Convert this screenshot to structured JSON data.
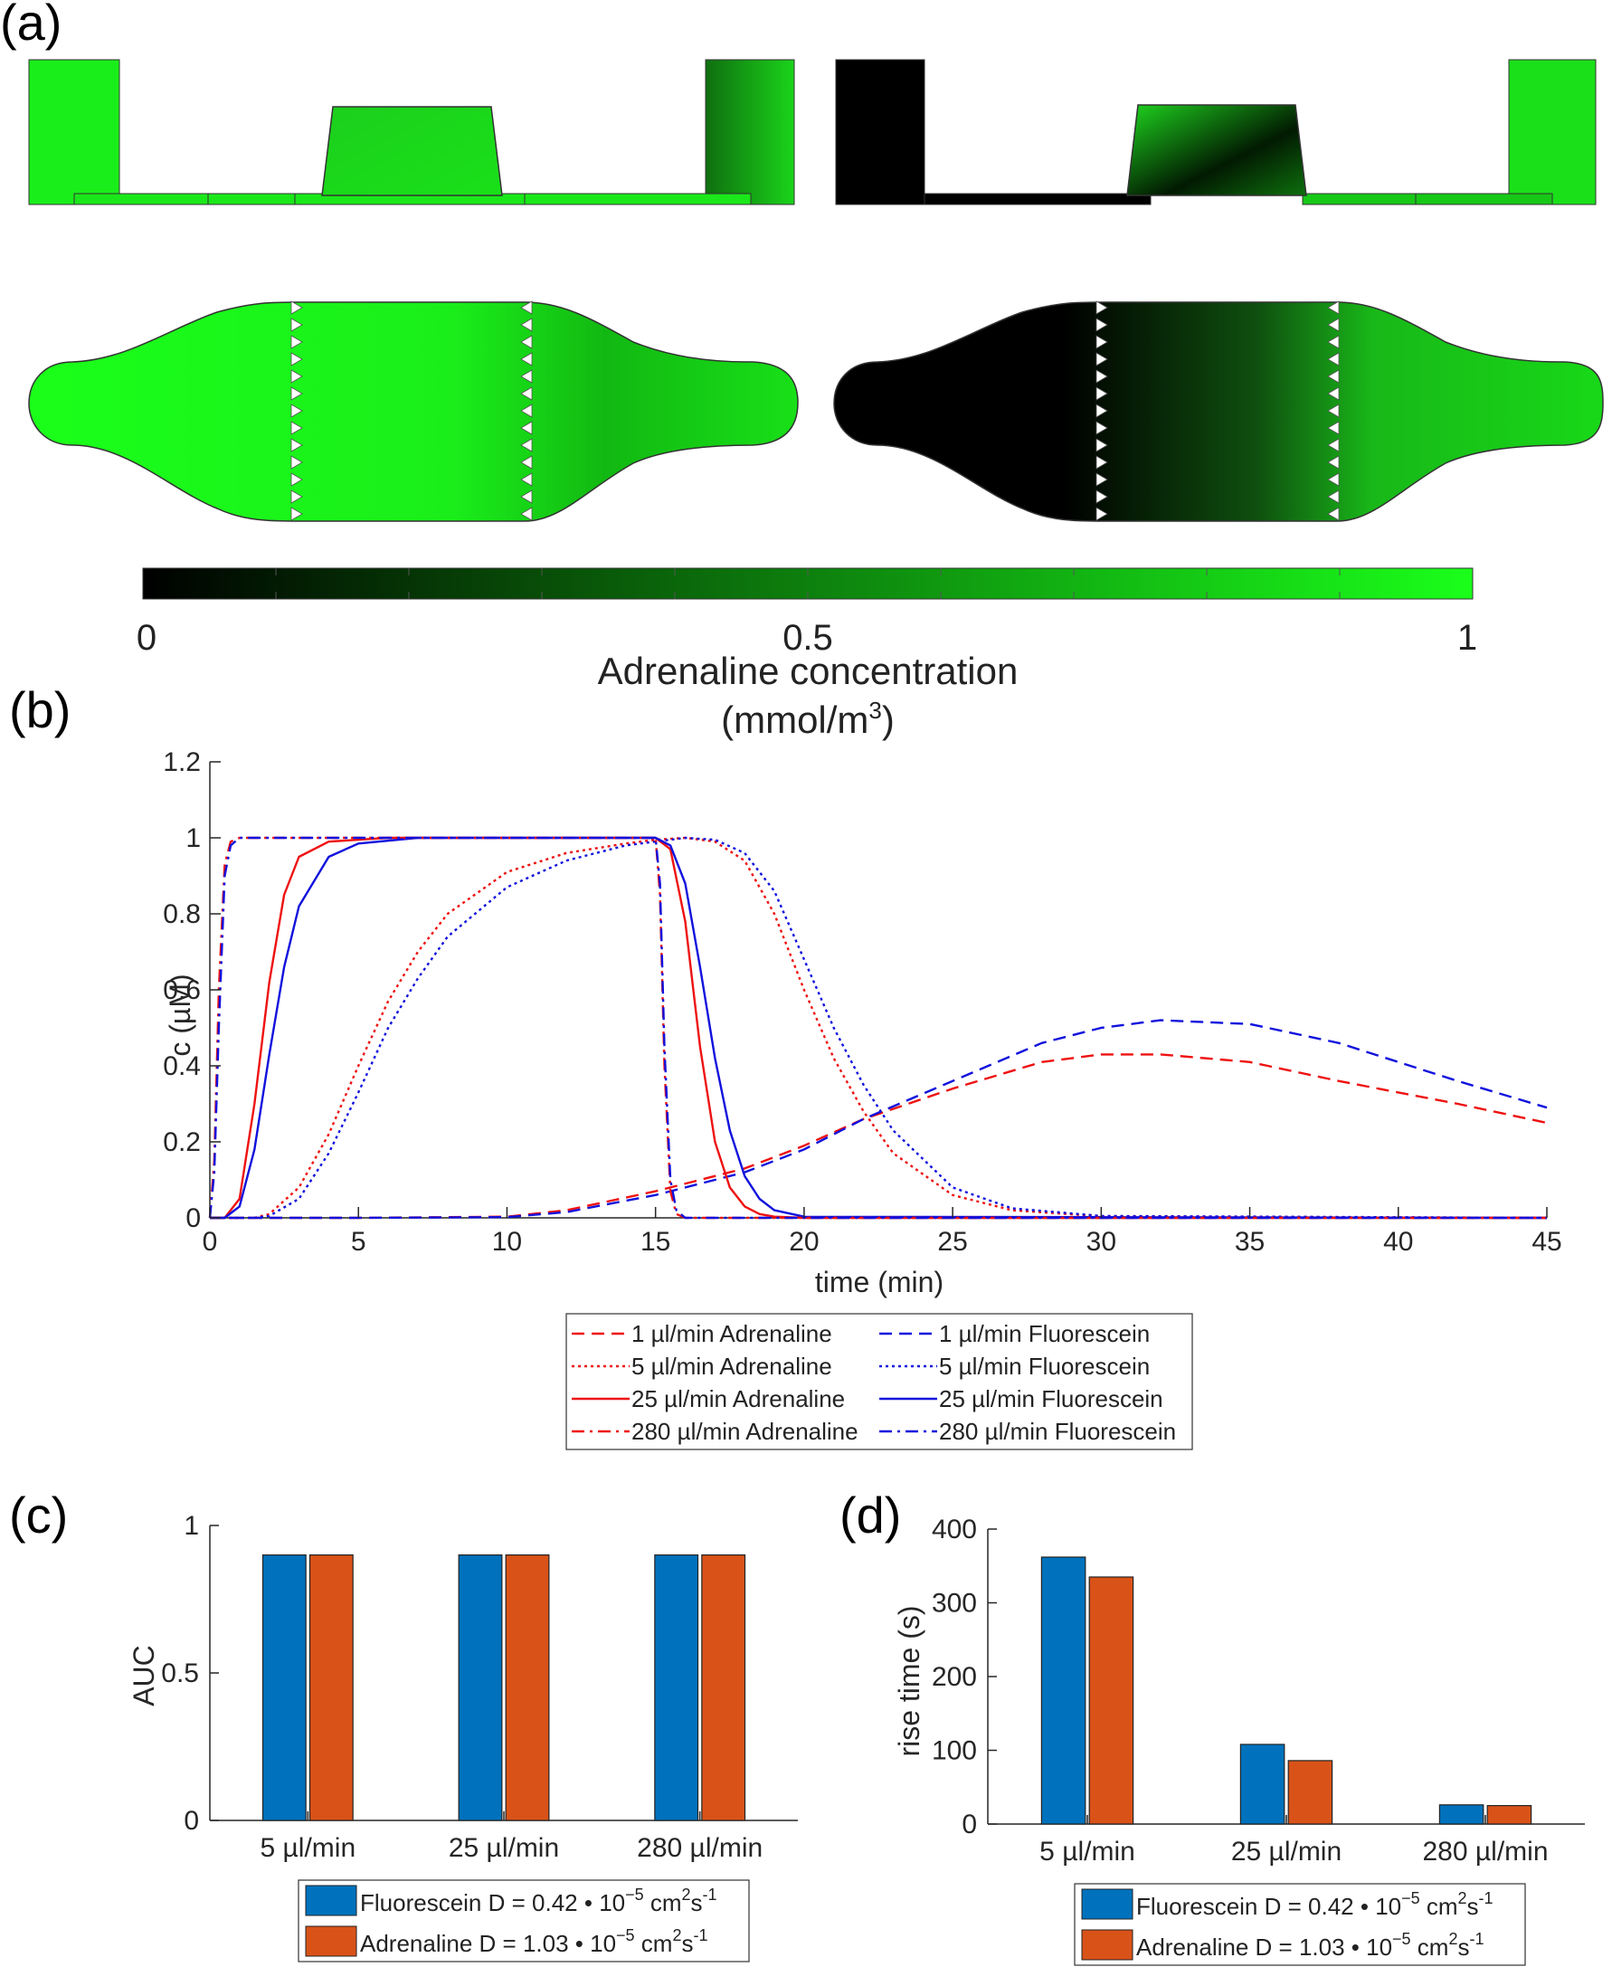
{
  "panel_labels": {
    "a": "(a)",
    "b": "(b)",
    "c": "(c)",
    "d": "(d)"
  },
  "colorbar": {
    "ticks": [
      "0",
      "0.5",
      "1"
    ],
    "title_line1": "Adrenaline concentration",
    "title_line2_main": "(mmol/m",
    "title_line2_sup": "3",
    "title_line2_end": ")",
    "color_low": "#000000",
    "color_high": "#1aff1a"
  },
  "colors": {
    "adrenaline_line": "#ee1111",
    "fluorescein_line": "#1111dd",
    "fluorescein_bar": "#0072bd",
    "adrenaline_bar": "#d95319"
  },
  "chart_data": [
    {
      "type": "line",
      "panel": "b",
      "xlabel": "time (min)",
      "ylabel": "c (µM)",
      "xlim": [
        0,
        45
      ],
      "ylim": [
        0,
        1.2
      ],
      "xticks": [
        "0",
        "5",
        "10",
        "15",
        "20",
        "25",
        "30",
        "35",
        "40",
        "45"
      ],
      "yticks": [
        "0",
        "0.2",
        "0.4",
        "0.6",
        "0.8",
        "1",
        "1.2"
      ],
      "grid": false,
      "legend_position": "below plot, two columns",
      "series": [
        {
          "name": "1 µl/min Adrenaline",
          "color": "adrenaline",
          "style": "dashed",
          "x": [
            0,
            5,
            10,
            12,
            15,
            18,
            20,
            22,
            25,
            28,
            30,
            32,
            35,
            38,
            40,
            42,
            45
          ],
          "y": [
            0,
            0,
            0.003,
            0.02,
            0.07,
            0.13,
            0.19,
            0.26,
            0.34,
            0.41,
            0.43,
            0.43,
            0.41,
            0.36,
            0.33,
            0.3,
            0.25
          ]
        },
        {
          "name": "1 µl/min Fluorescein",
          "color": "fluorescein",
          "style": "dashed",
          "x": [
            0,
            5,
            10,
            12,
            15,
            18,
            20,
            22,
            25,
            28,
            30,
            32,
            35,
            38,
            40,
            42,
            45
          ],
          "y": [
            0,
            0,
            0.002,
            0.015,
            0.06,
            0.12,
            0.18,
            0.26,
            0.36,
            0.46,
            0.5,
            0.52,
            0.51,
            0.46,
            0.41,
            0.36,
            0.29
          ]
        },
        {
          "name": "5 µl/min Adrenaline",
          "color": "adrenaline",
          "style": "dotted",
          "x": [
            0,
            1.5,
            2,
            3,
            4,
            5,
            6,
            7,
            8,
            10,
            12,
            14,
            15,
            16,
            17,
            18,
            19,
            20,
            21,
            22,
            23,
            25,
            27,
            30,
            45
          ],
          "y": [
            0,
            0,
            0.01,
            0.08,
            0.22,
            0.4,
            0.57,
            0.7,
            0.8,
            0.91,
            0.96,
            0.985,
            0.995,
            1.0,
            0.99,
            0.94,
            0.8,
            0.6,
            0.42,
            0.28,
            0.17,
            0.06,
            0.02,
            0.004,
            0
          ]
        },
        {
          "name": "5 µl/min Fluorescein",
          "color": "fluorescein",
          "style": "dotted",
          "x": [
            0,
            1.5,
            2,
            3,
            4,
            5,
            6,
            7,
            8,
            10,
            12,
            14,
            15,
            16,
            17,
            18,
            19,
            20,
            21,
            22,
            23,
            25,
            27,
            30,
            45
          ],
          "y": [
            0,
            0,
            0.005,
            0.05,
            0.17,
            0.33,
            0.5,
            0.63,
            0.74,
            0.87,
            0.94,
            0.98,
            0.99,
            1.0,
            0.995,
            0.96,
            0.86,
            0.68,
            0.5,
            0.35,
            0.23,
            0.08,
            0.025,
            0.005,
            0
          ]
        },
        {
          "name": "25 µl/min Adrenaline",
          "color": "adrenaline",
          "style": "solid",
          "x": [
            0,
            0.5,
            1,
            1.5,
            2,
            2.5,
            3,
            4,
            6,
            15,
            15.5,
            16,
            16.5,
            17,
            17.5,
            18,
            18.5,
            19,
            20,
            45
          ],
          "y": [
            0,
            0,
            0.05,
            0.3,
            0.62,
            0.85,
            0.95,
            0.99,
            1.0,
            1.0,
            0.97,
            0.78,
            0.45,
            0.2,
            0.08,
            0.03,
            0.01,
            0.003,
            0,
            0
          ]
        },
        {
          "name": "25 µl/min Fluorescein",
          "color": "fluorescein",
          "style": "solid",
          "x": [
            0,
            0.5,
            1,
            1.5,
            2,
            2.5,
            3,
            4,
            5,
            7,
            15,
            15.5,
            16,
            16.5,
            17,
            17.5,
            18,
            18.5,
            19,
            20,
            45
          ],
          "y": [
            0,
            0,
            0.03,
            0.18,
            0.43,
            0.66,
            0.82,
            0.95,
            0.985,
            1.0,
            1.0,
            0.98,
            0.88,
            0.66,
            0.42,
            0.23,
            0.11,
            0.05,
            0.02,
            0.003,
            0
          ]
        },
        {
          "name": "280 µl/min Adrenaline",
          "color": "adrenaline",
          "style": "dashdot",
          "x": [
            0,
            0.15,
            0.3,
            0.5,
            0.7,
            1.0,
            15,
            15.15,
            15.3,
            15.5,
            15.7,
            16,
            45
          ],
          "y": [
            0,
            0.15,
            0.6,
            0.93,
            0.99,
            1.0,
            1.0,
            0.85,
            0.4,
            0.07,
            0.01,
            0,
            0
          ]
        },
        {
          "name": "280 µl/min Fluorescein",
          "color": "fluorescein",
          "style": "dashdot",
          "x": [
            0,
            0.15,
            0.3,
            0.5,
            0.7,
            1.0,
            15,
            15.15,
            15.3,
            15.5,
            15.7,
            16,
            45
          ],
          "y": [
            0,
            0.12,
            0.5,
            0.9,
            0.98,
            1.0,
            1.0,
            0.88,
            0.45,
            0.1,
            0.02,
            0,
            0
          ]
        }
      ]
    },
    {
      "type": "bar",
      "panel": "c",
      "ylabel": "AUC",
      "ylim": [
        0,
        1
      ],
      "yticks": [
        "0",
        "0.5",
        "1"
      ],
      "categories": [
        "5 µl/min",
        "25 µl/min",
        "280 µl/min"
      ],
      "series": [
        {
          "name_main": "Fluorescein D = 0.42",
          "name_bullet": "•",
          "name_pow": "10",
          "name_exp": "−5",
          "name_unit": "cm",
          "name_unit_exp": "2",
          "name_unit2": "s",
          "name_unit2_exp": "-1",
          "color": "fluorescein_bar",
          "values": [
            0.9,
            0.9,
            0.9
          ]
        },
        {
          "name_main": "Adrenaline D = 1.03",
          "name_bullet": "•",
          "name_pow": "10",
          "name_exp": "−5",
          "name_unit": "cm",
          "name_unit_exp": "2",
          "name_unit2": "s",
          "name_unit2_exp": "-1",
          "color": "adrenaline_bar",
          "values": [
            0.9,
            0.9,
            0.9
          ]
        }
      ]
    },
    {
      "type": "bar",
      "panel": "d",
      "ylabel": "rise time (s)",
      "ylim": [
        0,
        400
      ],
      "yticks": [
        "0",
        "100",
        "200",
        "300",
        "400"
      ],
      "categories": [
        "5 µl/min",
        "25 µl/min",
        "280 µl/min"
      ],
      "series": [
        {
          "name_main": "Fluorescein D = 0.42",
          "name_bullet": "•",
          "name_pow": "10",
          "name_exp": "−5",
          "name_unit": "cm",
          "name_unit_exp": "2",
          "name_unit2": "s",
          "name_unit2_exp": "-1",
          "color": "fluorescein_bar",
          "values": [
            362,
            108,
            26
          ]
        },
        {
          "name_main": "Adrenaline D = 1.03",
          "name_bullet": "•",
          "name_pow": "10",
          "name_exp": "−5",
          "name_unit": "cm",
          "name_unit_exp": "2",
          "name_unit2": "s",
          "name_unit2_exp": "-1",
          "color": "adrenaline_bar",
          "values": [
            335,
            86,
            25
          ]
        }
      ]
    }
  ]
}
